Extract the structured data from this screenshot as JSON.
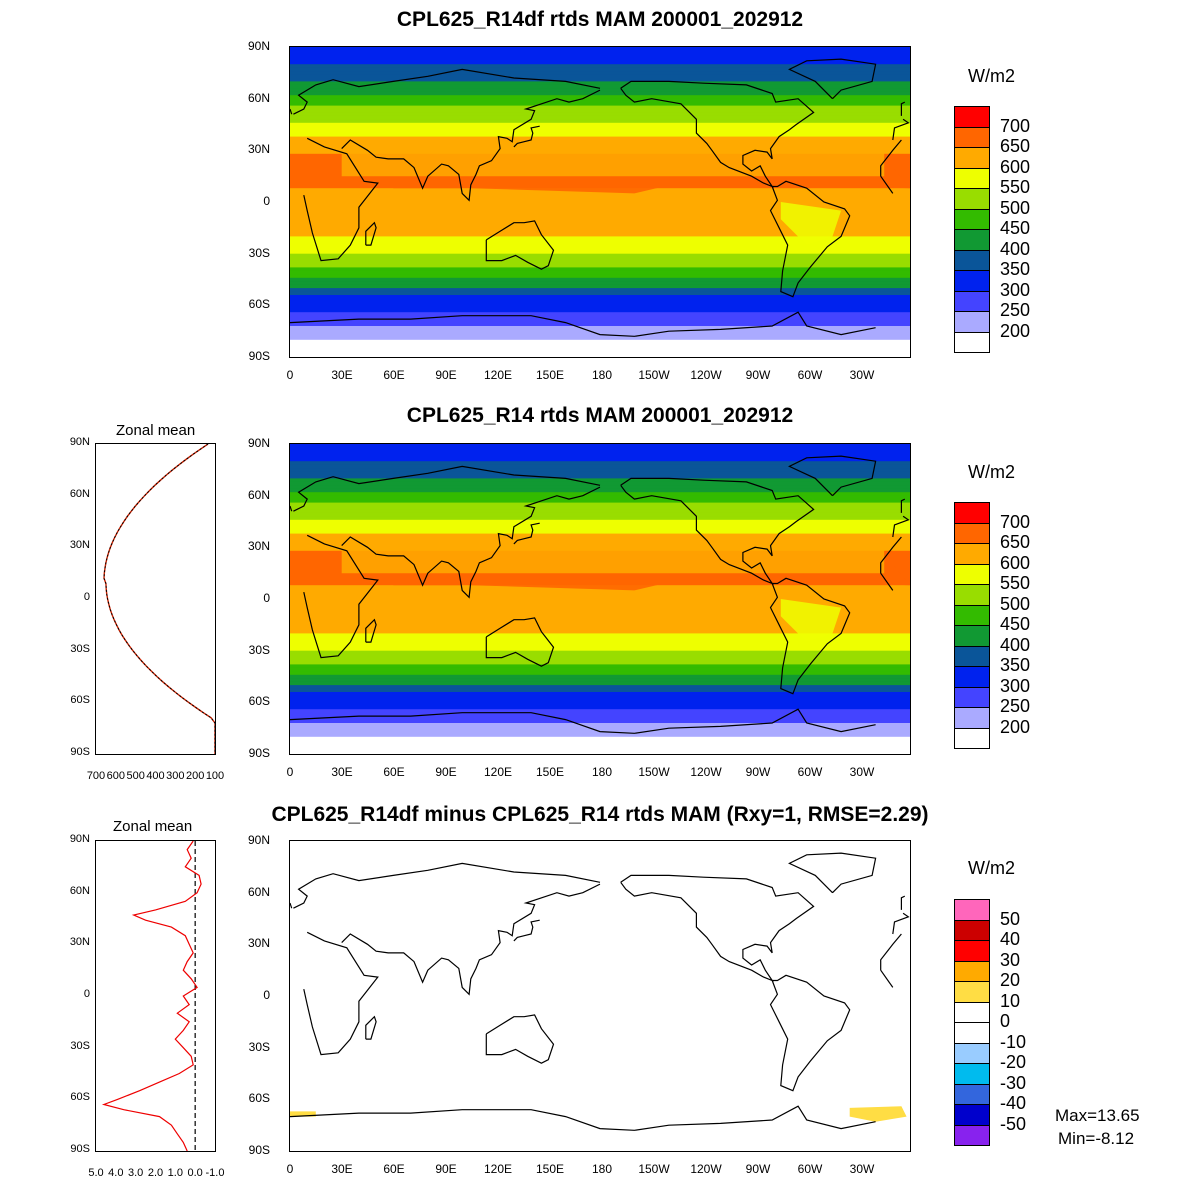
{
  "panels": [
    {
      "title": "CPL625_R14df rtds MAM 200001_202912",
      "units": "W/m2",
      "zonal_mean_title": ""
    },
    {
      "title": "CPL625_R14 rtds MAM 200001_202912",
      "units": "W/m2",
      "zonal_mean_title": "Zonal mean"
    },
    {
      "title": "CPL625_R14df minus CPL625_R14 rtds MAM (Rxy=1, RMSE=2.29)",
      "units": "W/m2",
      "zonal_mean_title": "Zonal mean"
    }
  ],
  "axes": {
    "lat_labels": [
      "90N",
      "60N",
      "30N",
      "0",
      "30S",
      "60S",
      "90S"
    ],
    "lon_labels": [
      "0",
      "30E",
      "60E",
      "90E",
      "120E",
      "150E",
      "180",
      "150W",
      "120W",
      "90W",
      "60W",
      "30W"
    ]
  },
  "colorbar_abs": {
    "labels": [
      "700",
      "650",
      "600",
      "550",
      "500",
      "450",
      "400",
      "350",
      "300",
      "250",
      "200"
    ],
    "colors": [
      "#ff0000",
      "#ff6600",
      "#ffaa00",
      "#eeff00",
      "#99dd00",
      "#33bb00",
      "#119933",
      "#0a5599",
      "#0022ee",
      "#4444ff",
      "#aaaaff",
      "#ffffff"
    ]
  },
  "colorbar_diff": {
    "labels": [
      "50",
      "40",
      "30",
      "20",
      "10",
      "0",
      "-10",
      "-20",
      "-30",
      "-40",
      "-50"
    ],
    "colors": [
      "#ff66bb",
      "#cc0000",
      "#ff0000",
      "#ffaa00",
      "#ffdd44",
      "#ffffff",
      "#ffffff",
      "#99ccff",
      "#00bbee",
      "#3366dd",
      "#0000cc",
      "#8822ee"
    ]
  },
  "zonal_abs": {
    "x_ticks": [
      "700",
      "600",
      "500",
      "400",
      "300",
      "200",
      "100"
    ]
  },
  "zonal_diff": {
    "x_ticks": [
      "5.0",
      "4.0",
      "3.0",
      "2.0",
      "1.0",
      "0.0",
      "-1.0"
    ]
  },
  "stats": {
    "max": "Max=13.65",
    "min": "Min=-8.12"
  }
}
